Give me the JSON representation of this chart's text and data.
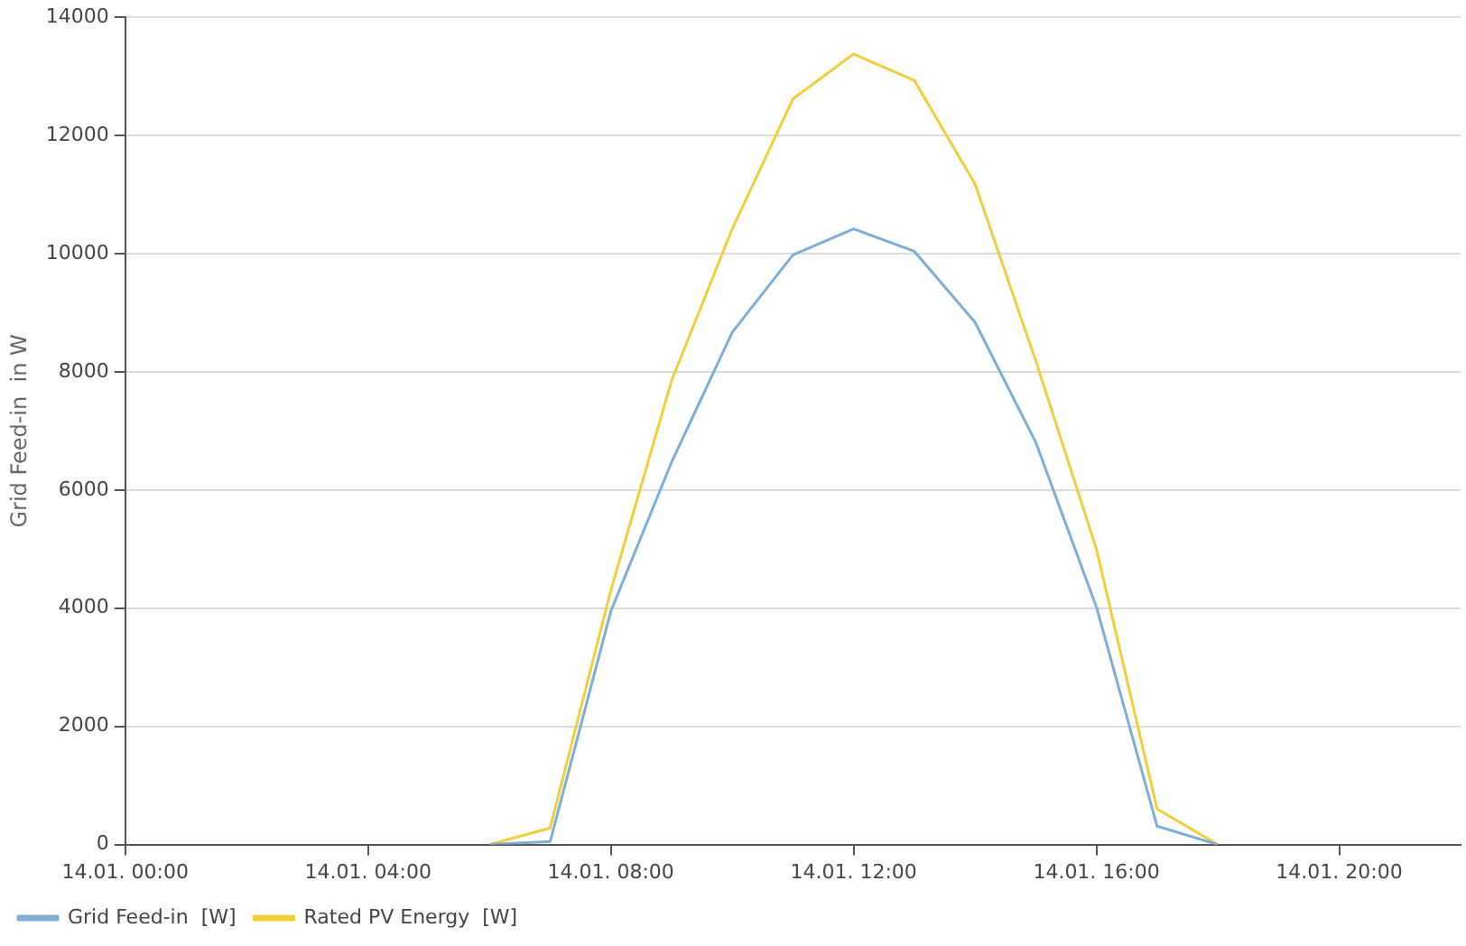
{
  "chart_data": {
    "type": "line",
    "ylabel": "Grid Feed-in  in W",
    "categories": [
      "14.01. 00:00",
      null,
      null,
      null,
      "14.01. 04:00",
      null,
      null,
      null,
      "14.01. 08:00",
      null,
      null,
      null,
      "14.01. 12:00",
      null,
      null,
      null,
      "14.01. 16:00",
      null,
      null,
      null,
      "14.01. 20:00",
      null,
      null
    ],
    "series": [
      {
        "name": "Grid Feed-in  [W]",
        "color": "#7eaed6",
        "values": [
          null,
          null,
          null,
          null,
          null,
          null,
          0,
          50,
          3950,
          6470,
          8670,
          9980,
          10420,
          10040,
          8840,
          6810,
          4020,
          310,
          0,
          null,
          null,
          null,
          null
        ]
      },
      {
        "name": "Rated PV Energy  [W]",
        "color": "#f2cf3a",
        "values": [
          null,
          null,
          null,
          null,
          null,
          null,
          0,
          280,
          4300,
          7850,
          10420,
          12620,
          13380,
          12930,
          11180,
          8190,
          5000,
          600,
          0,
          null,
          null,
          null,
          null
        ]
      }
    ],
    "ylim": [
      0,
      14000
    ],
    "yticks": [
      0,
      2000,
      4000,
      6000,
      8000,
      10000,
      12000,
      14000
    ],
    "grid": "y",
    "legend": "bottom left",
    "marker": "none",
    "line_style": "solid"
  }
}
